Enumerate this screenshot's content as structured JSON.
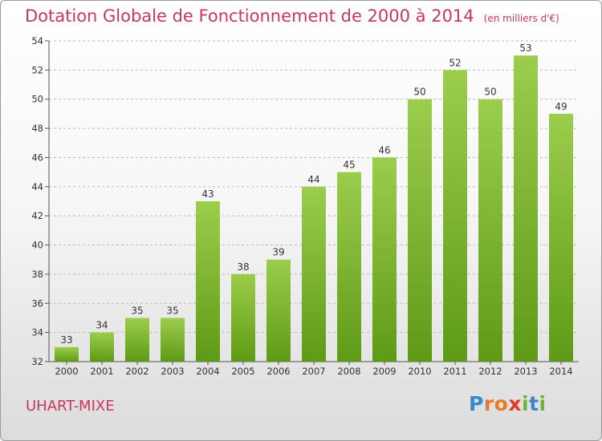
{
  "title": "Dotation Globale de Fonctionnement de 2000 à 2014",
  "unit": "(en milliers d'€)",
  "commune": "UHART-MIXE",
  "logo": {
    "letters": [
      "P",
      "r",
      "o",
      "x",
      "i",
      "t",
      "i"
    ],
    "colors": [
      "#3b88c8",
      "#e8782a",
      "#e8782a",
      "#e23a2b",
      "#6db33f",
      "#3b88c8",
      "#6db33f"
    ]
  },
  "colors": {
    "accent": "#c8385d",
    "bar_top": "#9ccd4c",
    "bar_bottom": "#5e9a16",
    "grid": "#bbbbbb"
  },
  "chart_data": {
    "type": "bar",
    "categories": [
      "2000",
      "2001",
      "2002",
      "2003",
      "2004",
      "2005",
      "2006",
      "2007",
      "2008",
      "2009",
      "2010",
      "2011",
      "2012",
      "2013",
      "2014"
    ],
    "values": [
      33,
      34,
      35,
      35,
      43,
      38,
      39,
      44,
      45,
      46,
      50,
      52,
      50,
      53,
      49
    ],
    "ylim": [
      32,
      54
    ],
    "yticks": [
      32,
      34,
      36,
      38,
      40,
      42,
      44,
      46,
      48,
      50,
      52,
      54
    ],
    "grid": true,
    "xlabel": "",
    "ylabel": ""
  }
}
